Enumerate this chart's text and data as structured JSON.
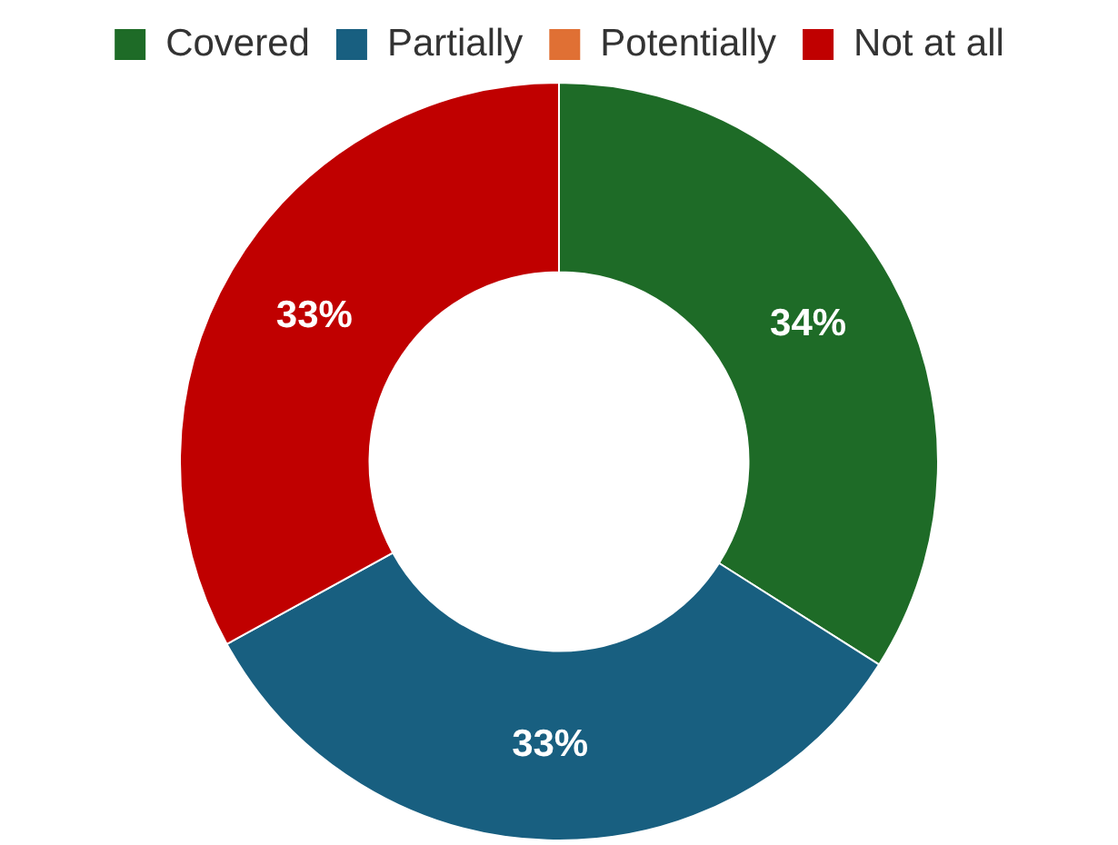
{
  "chart_data": {
    "type": "donut",
    "categories": [
      "Covered",
      "Partially",
      "Potentially",
      "Not at all"
    ],
    "values": [
      34,
      33,
      0,
      33
    ],
    "colors": [
      "#1e6b27",
      "#185f80",
      "#e07034",
      "#c00000"
    ],
    "value_labels": [
      "34%",
      "33%",
      null,
      "33%"
    ],
    "legend": "top"
  }
}
